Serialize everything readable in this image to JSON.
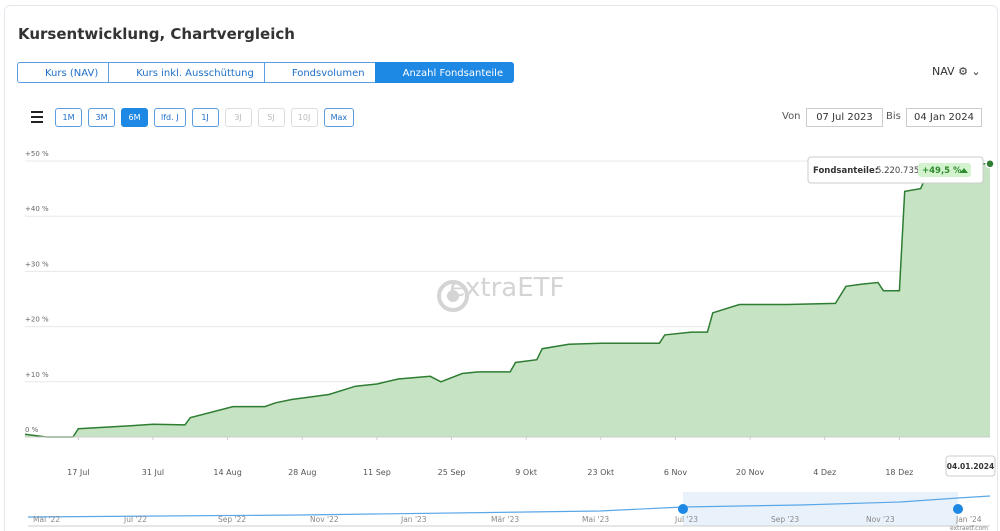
{
  "header": {
    "title": "Kursentwicklung, Chartvergleich"
  },
  "tabs": [
    {
      "label": "Kurs (NAV)",
      "active": false
    },
    {
      "label": "Kurs inkl. Ausschüttung",
      "active": false
    },
    {
      "label": "Fondsvolumen",
      "active": false
    },
    {
      "label": "Anzahl Fondsanteile",
      "active": true
    }
  ],
  "selector": {
    "label": "NAV"
  },
  "ranges": [
    {
      "label": "1M",
      "state": "normal"
    },
    {
      "label": "3M",
      "state": "normal"
    },
    {
      "label": "6M",
      "state": "active"
    },
    {
      "label": "lfd. J",
      "state": "normal"
    },
    {
      "label": "1J",
      "state": "normal"
    },
    {
      "label": "3J",
      "state": "disabled"
    },
    {
      "label": "5J",
      "state": "disabled"
    },
    {
      "label": "10J",
      "state": "disabled"
    },
    {
      "label": "Max",
      "state": "normal"
    }
  ],
  "date_range": {
    "from_label": "Von",
    "from": "07 Jul 2023",
    "to_label": "Bis",
    "to": "04 Jan 2024"
  },
  "watermark": "extraETF",
  "tooltip": {
    "label": "Fondsanteile:",
    "value": "5.220.735",
    "change": "+49,5 %",
    "date": "04.01.2024"
  },
  "navigator": {
    "labels": [
      "Mai '22",
      "Jul '22",
      "Sep '22",
      "Nov '22",
      "Jan '23",
      "Mär '23",
      "Mai '23",
      "Jul '23",
      "Sep '23",
      "Nov '23",
      "Jan '24"
    ],
    "credit": "extraetf.com"
  },
  "chart_data": {
    "type": "area",
    "color": "#2e7d32",
    "fill": "#c6e3c4",
    "grid": true,
    "x": [
      "2023-07-07",
      "2023-07-11",
      "2023-07-16",
      "2023-07-17",
      "2023-07-26",
      "2023-07-31",
      "2023-08-06",
      "2023-08-07",
      "2023-08-15",
      "2023-08-21",
      "2023-08-23",
      "2023-08-26",
      "2023-09-02",
      "2023-09-07",
      "2023-09-11",
      "2023-09-15",
      "2023-09-21",
      "2023-09-23",
      "2023-09-27",
      "2023-09-30",
      "2023-10-06",
      "2023-10-07",
      "2023-10-11",
      "2023-10-12",
      "2023-10-17",
      "2023-10-23",
      "2023-11-03",
      "2023-11-04",
      "2023-11-09",
      "2023-11-12",
      "2023-11-13",
      "2023-11-18",
      "2023-11-27",
      "2023-12-06",
      "2023-12-08",
      "2023-12-11",
      "2023-12-14",
      "2023-12-15",
      "2023-12-18",
      "2023-12-19",
      "2023-12-22",
      "2023-12-24",
      "2024-01-04"
    ],
    "values": [
      0.5,
      0,
      0,
      1.5,
      2,
      2.3,
      2.2,
      3.5,
      5.5,
      5.5,
      6.2,
      6.8,
      7.7,
      9.2,
      9.6,
      10.5,
      11,
      10,
      11.5,
      11.8,
      11.8,
      13.5,
      14,
      16,
      16.8,
      17,
      17,
      18.5,
      19,
      19,
      22.5,
      24,
      24,
      24.2,
      27.3,
      27.7,
      28,
      26.5,
      26.5,
      44.5,
      45,
      49.5,
      49.5
    ],
    "xlim": [
      "2023-07-07",
      "2024-01-04"
    ],
    "xticks": [
      {
        "value": "2023-07-17",
        "label": "17 Jul"
      },
      {
        "value": "2023-07-31",
        "label": "31 Jul"
      },
      {
        "value": "2023-08-14",
        "label": "14 Aug"
      },
      {
        "value": "2023-08-28",
        "label": "28 Aug"
      },
      {
        "value": "2023-09-11",
        "label": "11 Sep"
      },
      {
        "value": "2023-09-25",
        "label": "25 Sep"
      },
      {
        "value": "2023-10-09",
        "label": "9 Okt"
      },
      {
        "value": "2023-10-23",
        "label": "23 Okt"
      },
      {
        "value": "2023-11-06",
        "label": "6 Nov"
      },
      {
        "value": "2023-11-20",
        "label": "20 Nov"
      },
      {
        "value": "2023-12-04",
        "label": "4 Dez"
      },
      {
        "value": "2023-12-18",
        "label": "18 Dez"
      }
    ],
    "ylim": [
      0,
      52
    ],
    "yticks": [
      {
        "value": 0,
        "label": "0 %"
      },
      {
        "value": 10,
        "label": "+10 %"
      },
      {
        "value": 20,
        "label": "+20 %"
      },
      {
        "value": 30,
        "label": "+30 %"
      },
      {
        "value": 40,
        "label": "+40 %"
      },
      {
        "value": 50,
        "label": "+50 %"
      }
    ]
  }
}
